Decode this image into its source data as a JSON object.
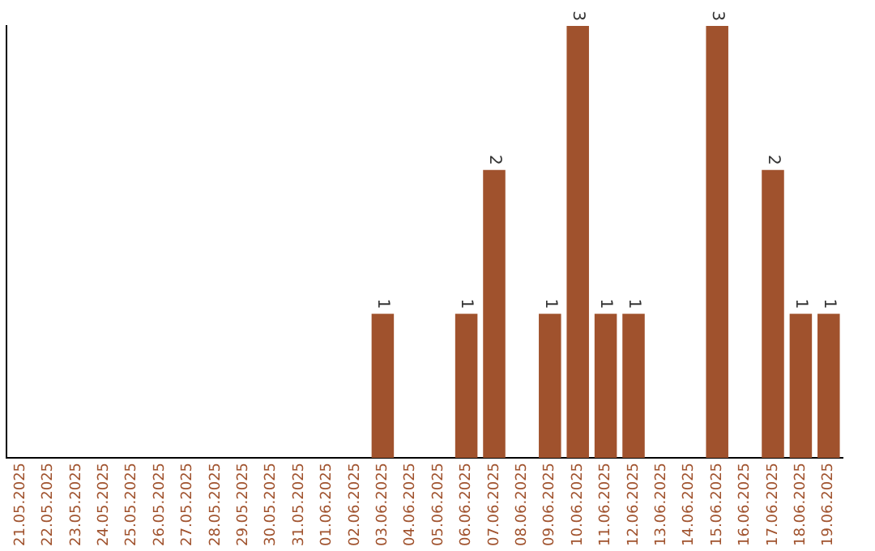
{
  "chart_data": {
    "type": "bar",
    "categories": [
      "21.05.2025",
      "22.05.2025",
      "23.05.2025",
      "24.05.2025",
      "25.05.2025",
      "26.05.2025",
      "27.05.2025",
      "28.05.2025",
      "29.05.2025",
      "30.05.2025",
      "31.05.2025",
      "01.06.2025",
      "02.06.2025",
      "03.06.2025",
      "04.06.2025",
      "05.06.2025",
      "06.06.2025",
      "07.06.2025",
      "08.06.2025",
      "09.06.2025",
      "10.06.2025",
      "11.06.2025",
      "12.06.2025",
      "13.06.2025",
      "14.06.2025",
      "15.06.2025",
      "16.06.2025",
      "17.06.2025",
      "18.06.2025",
      "19.06.2025"
    ],
    "values": [
      null,
      null,
      null,
      null,
      null,
      null,
      null,
      null,
      null,
      null,
      null,
      null,
      null,
      1,
      null,
      null,
      1,
      2,
      null,
      1,
      3,
      1,
      1,
      null,
      null,
      3,
      null,
      2,
      1,
      1
    ],
    "data_labels": true,
    "color": "#a0522d",
    "tick_labels": "x",
    "grid": false,
    "legend": false
  }
}
